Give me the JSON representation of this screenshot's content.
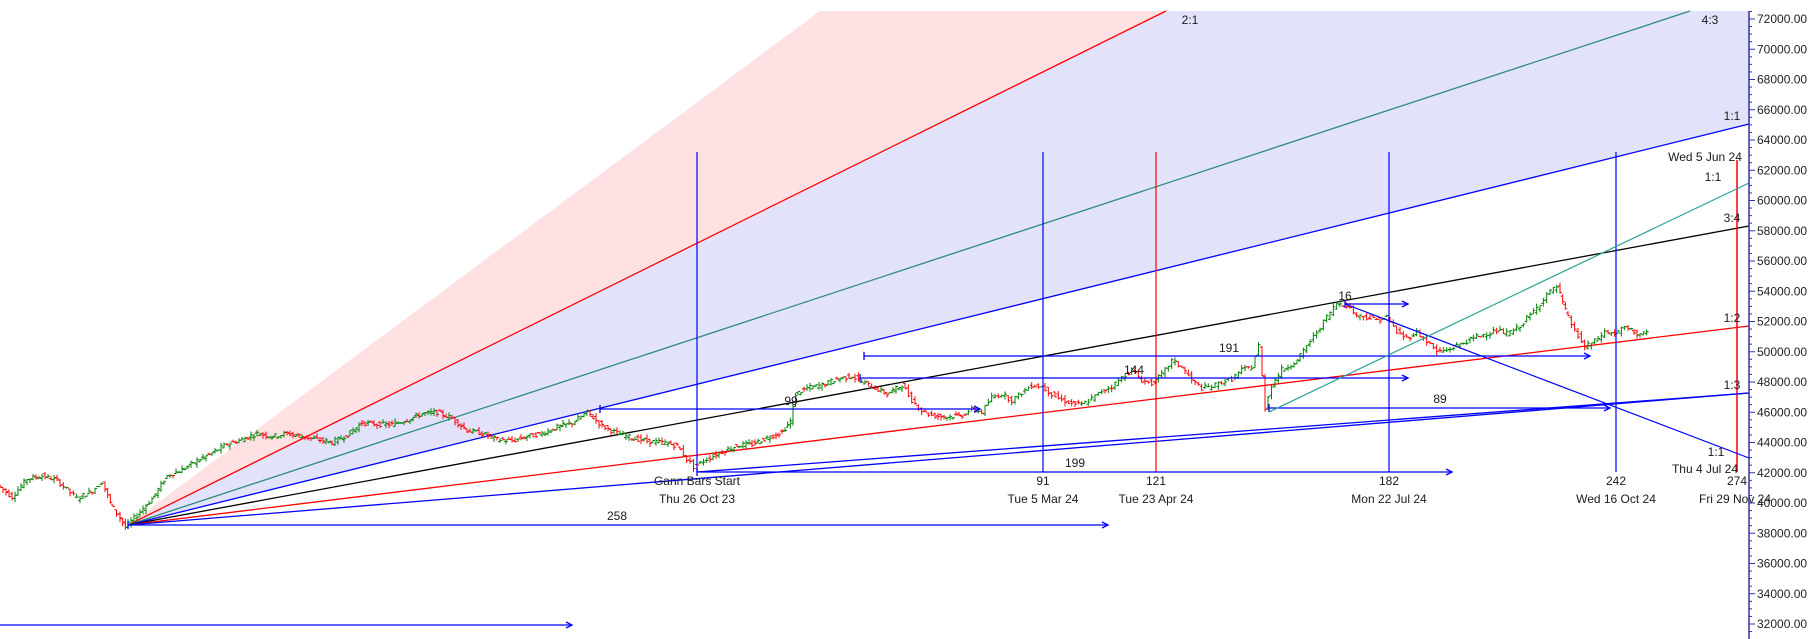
{
  "chart_data": {
    "type": "line",
    "title": "",
    "subtitle": "",
    "xlabel": "",
    "ylabel": "",
    "ylim": [
      31500,
      72500
    ],
    "grid": false,
    "legend": null,
    "description": "Price bar chart (OHLC bars, green up / red down) with Gann fan, Gann bars time counts and horizontal range projections",
    "y_axis": {
      "position": "right",
      "ticks": [
        72000,
        70000,
        68000,
        66000,
        64000,
        62000,
        60000,
        58000,
        56000,
        54000,
        52000,
        50000,
        48000,
        46000,
        44000,
        42000,
        40000,
        38000,
        36000,
        34000,
        32000
      ],
      "tick_labels": [
        "72000.00",
        "70000.00",
        "68000.00",
        "66000.00",
        "64000.00",
        "62000.00",
        "60000.00",
        "58000.00",
        "56000.00",
        "54000.00",
        "52000.00",
        "50000.00",
        "48000.00",
        "46000.00",
        "44000.00",
        "42000.00",
        "40000.00",
        "38000.00",
        "36000.00",
        "34000.00",
        "32000.00"
      ]
    },
    "gann_fan": {
      "origin_price": 38400,
      "angles": [
        {
          "label": "2:1",
          "color": "#ff0000",
          "end_price_at_right": null
        },
        {
          "label": "4:3",
          "color": "#2e8b7a",
          "end_price_at_right": null
        },
        {
          "label": "1:1",
          "color": "#0000ff",
          "end_price_at_right": 65000
        },
        {
          "label": "3:4",
          "color": "#000000",
          "end_price_at_right": 58300
        },
        {
          "label": "1:2",
          "color": "#ff0000",
          "end_price_at_right": 51700
        },
        {
          "label": "1:3",
          "color": "#0000ff",
          "end_price_at_right": 47300
        }
      ]
    },
    "gann_bars": {
      "start_label": "Gann Bars Start",
      "start_date": "Thu 26 Oct 23",
      "markers": [
        {
          "count": "91",
          "date": "Tue 5 Mar 24",
          "color": "#0000ff"
        },
        {
          "count": "121",
          "date": "Tue 23 Apr 24",
          "color": "#ff0000"
        },
        {
          "count": "182",
          "date": "Mon 22 Jul 24",
          "color": "#0000ff"
        },
        {
          "count": "242",
          "date": "Wed 16 Oct 24",
          "color": "#0000ff"
        },
        {
          "count": "274",
          "date": "Fri 29 Nov 24",
          "color": "#ff0000"
        }
      ]
    },
    "projection_counts": [
      "258",
      "199",
      "99",
      "144",
      "191",
      "16",
      "89"
    ],
    "annotations": [
      "2:1",
      "4:3",
      "1:1",
      "Wed 5 Jun 24",
      "1:1",
      "3:4",
      "1:2",
      "1:3",
      "1:1",
      "Thu 4 Jul 24"
    ],
    "price_path": [
      [
        0,
        41200
      ],
      [
        15,
        40400
      ],
      [
        30,
        41600
      ],
      [
        45,
        41800
      ],
      [
        60,
        41500
      ],
      [
        70,
        40900
      ],
      [
        80,
        40300
      ],
      [
        95,
        40800
      ],
      [
        105,
        41400
      ],
      [
        113,
        40000
      ],
      [
        120,
        39300
      ],
      [
        128,
        38400
      ],
      [
        140,
        39200
      ],
      [
        155,
        40300
      ],
      [
        170,
        41800
      ],
      [
        185,
        42200
      ],
      [
        200,
        42800
      ],
      [
        215,
        43300
      ],
      [
        230,
        43900
      ],
      [
        245,
        44200
      ],
      [
        260,
        44600
      ],
      [
        275,
        44400
      ],
      [
        290,
        44600
      ],
      [
        305,
        44400
      ],
      [
        320,
        44200
      ],
      [
        335,
        44000
      ],
      [
        350,
        44500
      ],
      [
        365,
        45300
      ],
      [
        380,
        45200
      ],
      [
        395,
        45200
      ],
      [
        410,
        45500
      ],
      [
        425,
        45900
      ],
      [
        440,
        46000
      ],
      [
        455,
        45600
      ],
      [
        470,
        44800
      ],
      [
        485,
        44600
      ],
      [
        500,
        44200
      ],
      [
        515,
        44100
      ],
      [
        530,
        44400
      ],
      [
        545,
        44600
      ],
      [
        560,
        45000
      ],
      [
        575,
        45300
      ],
      [
        590,
        46000
      ],
      [
        605,
        45100
      ],
      [
        620,
        44600
      ],
      [
        635,
        44300
      ],
      [
        650,
        44100
      ],
      [
        665,
        44000
      ],
      [
        680,
        43800
      ],
      [
        690,
        42900
      ],
      [
        697,
        42400
      ],
      [
        710,
        42900
      ],
      [
        725,
        43400
      ],
      [
        740,
        43800
      ],
      [
        755,
        43900
      ],
      [
        770,
        44300
      ],
      [
        785,
        44700
      ],
      [
        793,
        45400
      ],
      [
        798,
        47200
      ],
      [
        810,
        47600
      ],
      [
        825,
        47800
      ],
      [
        840,
        48200
      ],
      [
        855,
        48400
      ],
      [
        865,
        48000
      ],
      [
        875,
        47700
      ],
      [
        890,
        47200
      ],
      [
        905,
        47800
      ],
      [
        915,
        46800
      ],
      [
        925,
        46100
      ],
      [
        935,
        45800
      ],
      [
        950,
        45700
      ],
      [
        965,
        45800
      ],
      [
        975,
        46200
      ],
      [
        985,
        46000
      ],
      [
        995,
        47000
      ],
      [
        1005,
        47200
      ],
      [
        1015,
        46800
      ],
      [
        1025,
        47300
      ],
      [
        1035,
        47800
      ],
      [
        1045,
        47700
      ],
      [
        1055,
        47200
      ],
      [
        1065,
        46800
      ],
      [
        1075,
        46600
      ],
      [
        1085,
        46500
      ],
      [
        1095,
        46900
      ],
      [
        1105,
        47400
      ],
      [
        1115,
        47700
      ],
      [
        1125,
        48300
      ],
      [
        1135,
        48800
      ],
      [
        1145,
        48100
      ],
      [
        1155,
        47900
      ],
      [
        1165,
        48500
      ],
      [
        1175,
        49400
      ],
      [
        1185,
        49000
      ],
      [
        1195,
        48100
      ],
      [
        1205,
        47600
      ],
      [
        1215,
        47700
      ],
      [
        1225,
        48000
      ],
      [
        1235,
        48200
      ],
      [
        1245,
        48800
      ],
      [
        1255,
        49000
      ],
      [
        1262,
        50400
      ],
      [
        1268,
        46300
      ],
      [
        1275,
        47800
      ],
      [
        1285,
        48800
      ],
      [
        1300,
        49400
      ],
      [
        1310,
        50400
      ],
      [
        1320,
        51300
      ],
      [
        1330,
        52300
      ],
      [
        1340,
        53200
      ],
      [
        1350,
        53100
      ],
      [
        1360,
        52400
      ],
      [
        1370,
        52300
      ],
      [
        1380,
        52100
      ],
      [
        1390,
        52300
      ],
      [
        1400,
        51300
      ],
      [
        1410,
        50900
      ],
      [
        1420,
        51300
      ],
      [
        1430,
        50700
      ],
      [
        1440,
        50000
      ],
      [
        1450,
        50100
      ],
      [
        1460,
        50400
      ],
      [
        1470,
        50700
      ],
      [
        1480,
        51000
      ],
      [
        1490,
        51200
      ],
      [
        1500,
        51400
      ],
      [
        1510,
        51200
      ],
      [
        1520,
        51500
      ],
      [
        1530,
        52200
      ],
      [
        1540,
        52900
      ],
      [
        1550,
        53800
      ],
      [
        1560,
        54300
      ],
      [
        1568,
        52700
      ],
      [
        1578,
        51400
      ],
      [
        1588,
        50300
      ],
      [
        1598,
        50700
      ],
      [
        1608,
        51300
      ],
      [
        1618,
        51200
      ],
      [
        1628,
        51600
      ],
      [
        1640,
        51200
      ],
      [
        1650,
        51200
      ]
    ]
  },
  "overlay": {
    "top_clipped_text": "…"
  }
}
